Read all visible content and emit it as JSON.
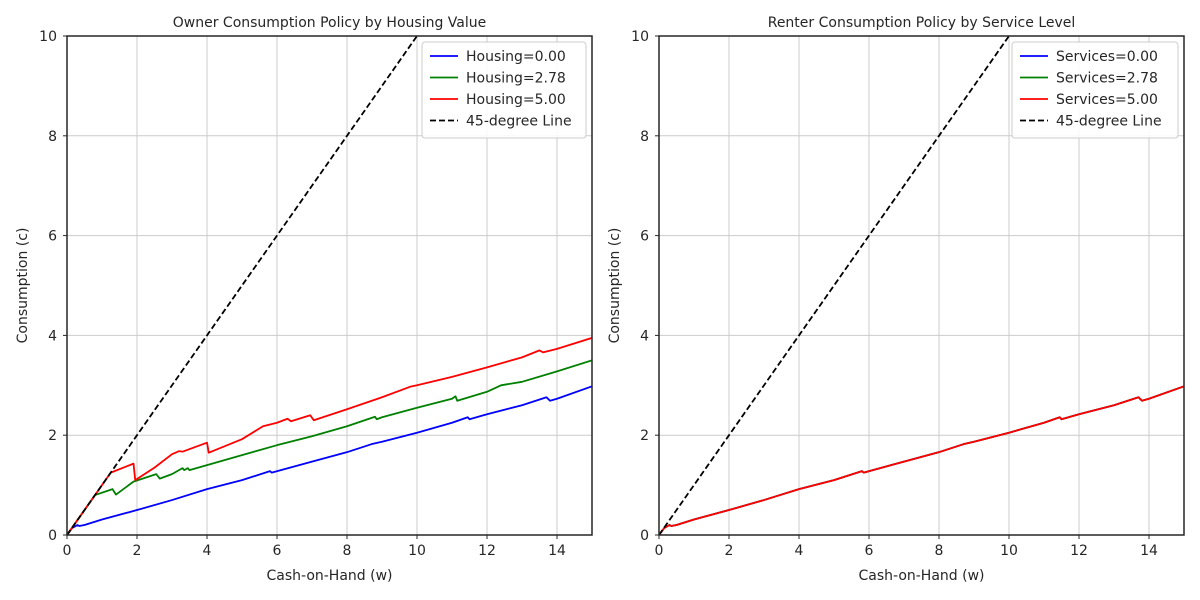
{
  "chart_data": [
    {
      "type": "line",
      "title": "Owner Consumption Policy by Housing Value",
      "xlabel": "Cash-on-Hand (w)",
      "ylabel": "Consumption (c)",
      "xlim": [
        0,
        15
      ],
      "ylim": [
        0,
        10
      ],
      "xticks": [
        0,
        2,
        4,
        6,
        8,
        10,
        12,
        14
      ],
      "yticks": [
        0,
        2,
        4,
        6,
        8,
        10
      ],
      "grid": true,
      "legend_position": "top-right",
      "series": [
        {
          "name": "Housing=0.00",
          "color": "#0000ff",
          "dash": "solid",
          "points": [
            [
              0,
              0
            ],
            [
              0.15,
              0.14
            ],
            [
              0.3,
              0.2
            ],
            [
              0.35,
              0.18
            ],
            [
              0.5,
              0.2
            ],
            [
              1,
              0.31
            ],
            [
              2,
              0.5
            ],
            [
              3,
              0.7
            ],
            [
              4,
              0.92
            ],
            [
              5,
              1.1
            ],
            [
              5.8,
              1.28
            ],
            [
              5.85,
              1.25
            ],
            [
              7,
              1.47
            ],
            [
              8,
              1.66
            ],
            [
              8.7,
              1.82
            ],
            [
              9,
              1.87
            ],
            [
              10,
              2.05
            ],
            [
              11,
              2.25
            ],
            [
              11.45,
              2.36
            ],
            [
              11.5,
              2.32
            ],
            [
              12,
              2.42
            ],
            [
              13,
              2.6
            ],
            [
              13.7,
              2.76
            ],
            [
              13.8,
              2.69
            ],
            [
              14,
              2.73
            ],
            [
              15,
              2.98
            ]
          ]
        },
        {
          "name": "Housing=2.78",
          "color": "#008000",
          "dash": "solid",
          "points": [
            [
              0,
              0
            ],
            [
              0.8,
              0.8
            ],
            [
              1.3,
              0.92
            ],
            [
              1.4,
              0.81
            ],
            [
              1.9,
              1.07
            ],
            [
              2.55,
              1.22
            ],
            [
              2.65,
              1.13
            ],
            [
              3,
              1.22
            ],
            [
              3.3,
              1.34
            ],
            [
              3.35,
              1.3
            ],
            [
              3.45,
              1.34
            ],
            [
              3.5,
              1.3
            ],
            [
              4,
              1.4
            ],
            [
              5,
              1.6
            ],
            [
              6,
              1.8
            ],
            [
              7,
              1.98
            ],
            [
              8,
              2.18
            ],
            [
              8.8,
              2.37
            ],
            [
              8.85,
              2.32
            ],
            [
              9,
              2.36
            ],
            [
              10,
              2.55
            ],
            [
              11,
              2.73
            ],
            [
              11.1,
              2.78
            ],
            [
              11.15,
              2.69
            ],
            [
              12,
              2.87
            ],
            [
              12.4,
              3.0
            ],
            [
              13,
              3.07
            ],
            [
              14,
              3.28
            ],
            [
              15,
              3.5
            ]
          ]
        },
        {
          "name": "Housing=5.00",
          "color": "#ff0000",
          "dash": "solid",
          "points": [
            [
              0,
              0
            ],
            [
              1.25,
              1.25
            ],
            [
              1.9,
              1.43
            ],
            [
              1.95,
              1.1
            ],
            [
              2.5,
              1.35
            ],
            [
              3,
              1.62
            ],
            [
              3.2,
              1.68
            ],
            [
              3.3,
              1.67
            ],
            [
              4,
              1.85
            ],
            [
              4.05,
              1.65
            ],
            [
              5,
              1.92
            ],
            [
              5.6,
              2.18
            ],
            [
              6,
              2.25
            ],
            [
              6.3,
              2.33
            ],
            [
              6.4,
              2.28
            ],
            [
              6.95,
              2.4
            ],
            [
              7.05,
              2.3
            ],
            [
              8,
              2.52
            ],
            [
              9,
              2.76
            ],
            [
              9.8,
              2.97
            ],
            [
              10,
              3.0
            ],
            [
              11,
              3.17
            ],
            [
              12,
              3.36
            ],
            [
              13,
              3.56
            ],
            [
              13.5,
              3.7
            ],
            [
              13.6,
              3.66
            ],
            [
              14,
              3.73
            ],
            [
              15,
              3.95
            ]
          ]
        },
        {
          "name": "45-degree Line",
          "color": "#000000",
          "dash": "dashed",
          "points": [
            [
              0,
              0
            ],
            [
              10,
              10
            ]
          ]
        }
      ]
    },
    {
      "type": "line",
      "title": "Renter Consumption Policy by Service Level",
      "xlabel": "Cash-on-Hand (w)",
      "ylabel": "Consumption (c)",
      "xlim": [
        0,
        15
      ],
      "ylim": [
        0,
        10
      ],
      "xticks": [
        0,
        2,
        4,
        6,
        8,
        10,
        12,
        14
      ],
      "yticks": [
        0,
        2,
        4,
        6,
        8,
        10
      ],
      "grid": true,
      "legend_position": "top-right",
      "series": [
        {
          "name": "Services=0.00",
          "color": "#0000ff",
          "dash": "solid",
          "points": [
            [
              0,
              0
            ],
            [
              0.15,
              0.14
            ],
            [
              0.3,
              0.2
            ],
            [
              0.35,
              0.18
            ],
            [
              0.5,
              0.2
            ],
            [
              1,
              0.31
            ],
            [
              2,
              0.5
            ],
            [
              3,
              0.7
            ],
            [
              4,
              0.92
            ],
            [
              5,
              1.1
            ],
            [
              5.8,
              1.28
            ],
            [
              5.85,
              1.25
            ],
            [
              7,
              1.47
            ],
            [
              8,
              1.66
            ],
            [
              8.7,
              1.82
            ],
            [
              9,
              1.87
            ],
            [
              10,
              2.05
            ],
            [
              11,
              2.25
            ],
            [
              11.45,
              2.36
            ],
            [
              11.5,
              2.32
            ],
            [
              12,
              2.42
            ],
            [
              13,
              2.6
            ],
            [
              13.7,
              2.76
            ],
            [
              13.8,
              2.69
            ],
            [
              14,
              2.73
            ],
            [
              15,
              2.98
            ]
          ]
        },
        {
          "name": "Services=2.78",
          "color": "#008000",
          "dash": "solid",
          "points": [
            [
              0,
              0
            ],
            [
              0.15,
              0.14
            ],
            [
              0.3,
              0.2
            ],
            [
              0.35,
              0.18
            ],
            [
              0.5,
              0.2
            ],
            [
              1,
              0.31
            ],
            [
              2,
              0.5
            ],
            [
              3,
              0.7
            ],
            [
              4,
              0.92
            ],
            [
              5,
              1.1
            ],
            [
              5.8,
              1.28
            ],
            [
              5.85,
              1.25
            ],
            [
              7,
              1.47
            ],
            [
              8,
              1.66
            ],
            [
              8.7,
              1.82
            ],
            [
              9,
              1.87
            ],
            [
              10,
              2.05
            ],
            [
              11,
              2.25
            ],
            [
              11.45,
              2.36
            ],
            [
              11.5,
              2.32
            ],
            [
              12,
              2.42
            ],
            [
              13,
              2.6
            ],
            [
              13.7,
              2.76
            ],
            [
              13.8,
              2.69
            ],
            [
              14,
              2.73
            ],
            [
              15,
              2.98
            ]
          ]
        },
        {
          "name": "Services=5.00",
          "color": "#ff0000",
          "dash": "solid",
          "points": [
            [
              0,
              0
            ],
            [
              0.15,
              0.14
            ],
            [
              0.3,
              0.2
            ],
            [
              0.35,
              0.18
            ],
            [
              0.5,
              0.2
            ],
            [
              1,
              0.31
            ],
            [
              2,
              0.5
            ],
            [
              3,
              0.7
            ],
            [
              4,
              0.92
            ],
            [
              5,
              1.1
            ],
            [
              5.8,
              1.28
            ],
            [
              5.85,
              1.25
            ],
            [
              7,
              1.47
            ],
            [
              8,
              1.66
            ],
            [
              8.7,
              1.82
            ],
            [
              9,
              1.87
            ],
            [
              10,
              2.05
            ],
            [
              11,
              2.25
            ],
            [
              11.45,
              2.36
            ],
            [
              11.5,
              2.32
            ],
            [
              12,
              2.42
            ],
            [
              13,
              2.6
            ],
            [
              13.7,
              2.76
            ],
            [
              13.8,
              2.69
            ],
            [
              14,
              2.73
            ],
            [
              15,
              2.98
            ]
          ]
        },
        {
          "name": "45-degree Line",
          "color": "#000000",
          "dash": "dashed",
          "points": [
            [
              0,
              0
            ],
            [
              10,
              10
            ]
          ]
        }
      ]
    }
  ]
}
